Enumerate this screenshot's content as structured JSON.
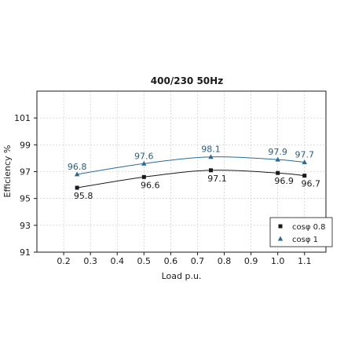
{
  "chart_data": {
    "type": "line",
    "title": "400/230 50Hz",
    "xlabel": "Load p.u.",
    "ylabel": "Efficiency %",
    "xlim": [
      0.1,
      1.18
    ],
    "ylim": [
      91,
      103
    ],
    "xticks": [
      "0.2",
      "0.3",
      "0.4",
      "0.5",
      "0.6",
      "0.7",
      "0.8",
      "0.9",
      "1.0",
      "1.1"
    ],
    "yticks": [
      "91",
      "93",
      "95",
      "97",
      "99",
      "101"
    ],
    "grid": true,
    "legend_position": "bottom-right",
    "series": [
      {
        "name": "cosφ 0.8",
        "marker": "square",
        "color": "#1a1a1a",
        "x": [
          0.25,
          0.5,
          0.75,
          1.0,
          1.1
        ],
        "y": [
          95.8,
          96.6,
          97.1,
          96.9,
          96.7
        ],
        "labels": [
          "95.8",
          "96.6",
          "97.1",
          "96.9",
          "96.7"
        ]
      },
      {
        "name": "cosφ 1",
        "marker": "triangle",
        "color": "#2a6a96",
        "x": [
          0.25,
          0.5,
          0.75,
          1.0,
          1.1
        ],
        "y": [
          96.8,
          97.6,
          98.1,
          97.9,
          97.7
        ],
        "labels": [
          "96.8",
          "97.6",
          "98.1",
          "97.9",
          "97.7"
        ]
      }
    ]
  }
}
